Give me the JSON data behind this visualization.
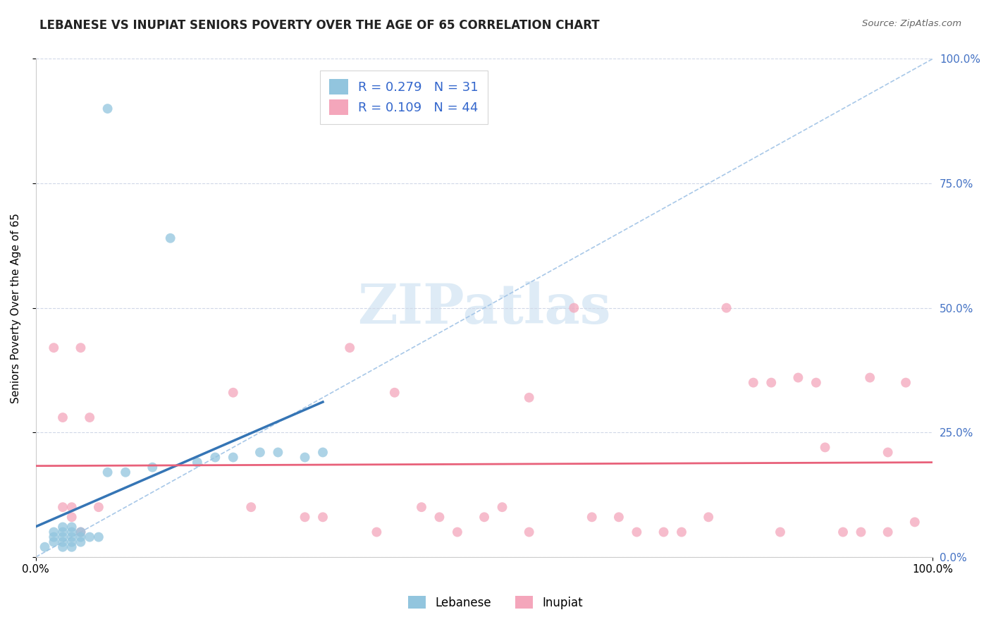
{
  "title": "LEBANESE VS INUPIAT SENIORS POVERTY OVER THE AGE OF 65 CORRELATION CHART",
  "source": "Source: ZipAtlas.com",
  "ylabel": "Seniors Poverty Over the Age of 65",
  "xlim": [
    0,
    1
  ],
  "ylim": [
    0,
    1
  ],
  "x_tick_labels": [
    "0.0%",
    "100.0%"
  ],
  "y_tick_positions": [
    0.0,
    0.25,
    0.5,
    0.75,
    1.0
  ],
  "y_tick_labels_right": [
    "0.0%",
    "25.0%",
    "50.0%",
    "75.0%",
    "100.0%"
  ],
  "lebanese_R": 0.279,
  "lebanese_N": 31,
  "inupiat_R": 0.109,
  "inupiat_N": 44,
  "lebanese_color": "#92c5de",
  "inupiat_color": "#f4a6bb",
  "lebanese_line_color": "#3575b5",
  "inupiat_line_color": "#e8617a",
  "diagonal_color": "#a8c8e8",
  "grid_color": "#d0d8e8",
  "watermark_color": "#c8dff0",
  "lebanese_x": [
    0.01,
    0.02,
    0.02,
    0.02,
    0.03,
    0.03,
    0.03,
    0.03,
    0.03,
    0.04,
    0.04,
    0.04,
    0.04,
    0.04,
    0.05,
    0.05,
    0.05,
    0.06,
    0.07,
    0.08,
    0.1,
    0.13,
    0.15,
    0.18,
    0.2,
    0.22,
    0.25,
    0.27,
    0.3,
    0.32,
    0.08
  ],
  "lebanese_y": [
    0.02,
    0.03,
    0.04,
    0.05,
    0.02,
    0.03,
    0.04,
    0.05,
    0.06,
    0.02,
    0.03,
    0.04,
    0.05,
    0.06,
    0.03,
    0.04,
    0.05,
    0.04,
    0.04,
    0.9,
    0.17,
    0.18,
    0.64,
    0.19,
    0.2,
    0.2,
    0.21,
    0.21,
    0.2,
    0.21,
    0.17
  ],
  "lebanese_line_x": [
    0.0,
    0.33
  ],
  "lebanese_line_y_start": 0.08,
  "lebanese_line_y_end": 0.42,
  "inupiat_x": [
    0.02,
    0.03,
    0.03,
    0.04,
    0.04,
    0.05,
    0.05,
    0.06,
    0.07,
    0.22,
    0.24,
    0.35,
    0.38,
    0.43,
    0.47,
    0.5,
    0.52,
    0.55,
    0.6,
    0.62,
    0.65,
    0.67,
    0.72,
    0.75,
    0.77,
    0.8,
    0.83,
    0.85,
    0.87,
    0.88,
    0.9,
    0.92,
    0.93,
    0.95,
    0.97,
    0.98,
    0.3,
    0.32,
    0.4,
    0.45,
    0.55,
    0.7,
    0.82,
    0.95
  ],
  "inupiat_y": [
    0.42,
    0.28,
    0.1,
    0.08,
    0.1,
    0.05,
    0.42,
    0.28,
    0.1,
    0.33,
    0.1,
    0.42,
    0.05,
    0.1,
    0.05,
    0.08,
    0.1,
    0.05,
    0.5,
    0.08,
    0.08,
    0.05,
    0.05,
    0.08,
    0.5,
    0.35,
    0.05,
    0.36,
    0.35,
    0.22,
    0.05,
    0.05,
    0.36,
    0.05,
    0.35,
    0.07,
    0.08,
    0.08,
    0.33,
    0.08,
    0.32,
    0.05,
    0.35,
    0.21
  ],
  "inupiat_line_y_start": 0.152,
  "inupiat_line_y_end": 0.2
}
